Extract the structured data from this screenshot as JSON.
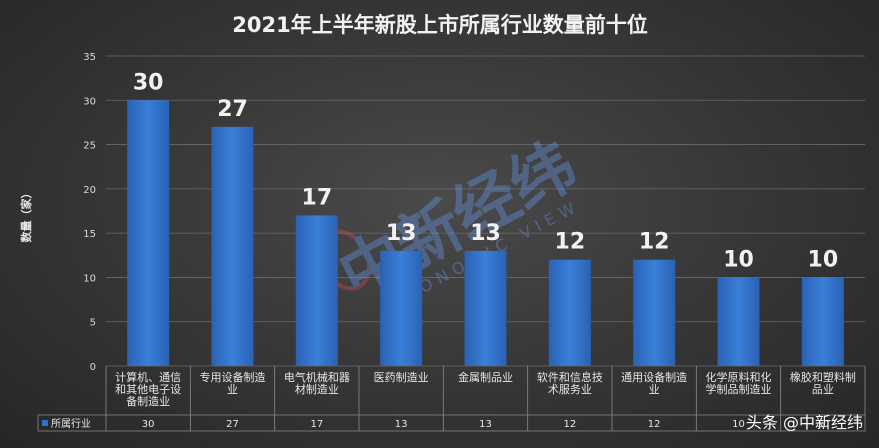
{
  "chart_data": {
    "type": "bar",
    "title": "2021年上半年新股上市所属行业数量前十位",
    "ylabel": "数量（家）",
    "ylim": [
      0,
      35
    ],
    "yticks": [
      0,
      5,
      10,
      15,
      20,
      25,
      30,
      35
    ],
    "grid": true,
    "legend": "bottom-left (data table)",
    "series": [
      {
        "name": "所属行业",
        "color": "#2f6fc7",
        "values": [
          30,
          27,
          17,
          13,
          13,
          12,
          12,
          10,
          10
        ]
      }
    ],
    "categories": [
      [
        "计算机、通信",
        "和其他电子设",
        "备制造业"
      ],
      [
        "专用设备制造",
        "业"
      ],
      [
        "电气机械和器",
        "材制造业"
      ],
      [
        "医药制造业"
      ],
      [
        "金属制品业"
      ],
      [
        "软件和信息技",
        "术服务业"
      ],
      [
        "通用设备制造",
        "业"
      ],
      [
        "化学原料和化",
        "学制品制造业"
      ],
      [
        "橡胶和塑料制",
        "品业"
      ]
    ]
  },
  "watermark": {
    "text": "头条 @中新经纬",
    "logo_text": "中新经纬"
  }
}
